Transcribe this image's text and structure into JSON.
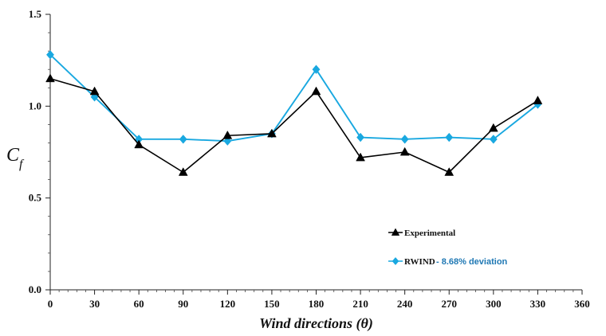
{
  "chart_data": {
    "type": "line",
    "title": "",
    "xlabel": "Wind directions (θ)",
    "ylabel": "C_f",
    "x": [
      0,
      30,
      60,
      90,
      120,
      150,
      180,
      210,
      240,
      270,
      300,
      330
    ],
    "series": [
      {
        "name": "Experimental",
        "color": "#000000",
        "marker": "triangle",
        "values": [
          1.15,
          1.08,
          0.79,
          0.64,
          0.84,
          0.85,
          1.08,
          0.72,
          0.75,
          0.64,
          0.88,
          1.03
        ]
      },
      {
        "name": "RWIND",
        "color": "#19a8e0",
        "marker": "diamond",
        "values": [
          1.28,
          1.05,
          0.82,
          0.82,
          0.81,
          0.85,
          1.2,
          0.83,
          0.82,
          0.83,
          0.82,
          1.01
        ]
      }
    ],
    "xlim": [
      0,
      360
    ],
    "ylim": [
      0.0,
      1.5
    ],
    "x_ticks": [
      "0",
      "30",
      "60",
      "90",
      "120",
      "150",
      "180",
      "210",
      "240",
      "270",
      "300",
      "330",
      "360"
    ],
    "y_ticks": [
      "0.0",
      "0.5",
      "1.0",
      "1.5"
    ],
    "legend": {
      "placement": "right-lower",
      "note": "- 8.68% deviation"
    },
    "grid": false
  }
}
